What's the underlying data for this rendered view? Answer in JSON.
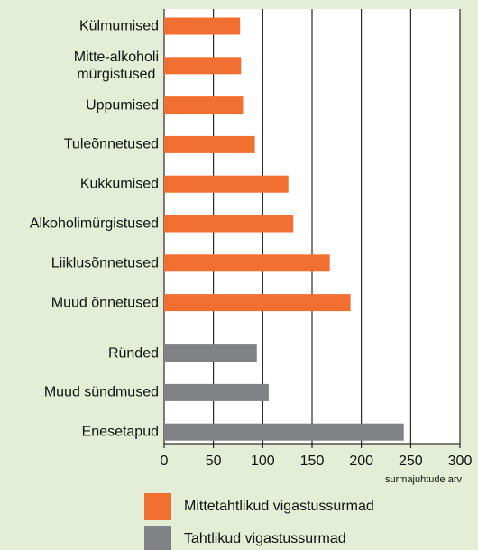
{
  "chart_data": {
    "type": "bar",
    "orientation": "horizontal",
    "categories": [
      "Külmumised",
      "Mitte-alkoholi\nmürgistused",
      "Uppumised",
      "Tuleõnnetused",
      "Kukkumised",
      "Alkoholimürgistused",
      "Liiklusõnnetused",
      "Muud õnnetused",
      "Ründed",
      "Muud sündmused",
      "Enesetapud"
    ],
    "series": [
      {
        "name": "Mittetahtlikud vigastussurmad",
        "color": "#f26f32",
        "values": [
          77,
          78,
          80,
          92,
          126,
          131,
          168,
          189,
          null,
          null,
          null
        ]
      },
      {
        "name": "Tahtlikud vigastussurmad",
        "color": "#808285",
        "values": [
          null,
          null,
          null,
          null,
          null,
          null,
          null,
          null,
          94,
          106,
          243
        ]
      }
    ],
    "xlabel": "surmajuhtude arv",
    "xlim": [
      0,
      300
    ],
    "xticks": [
      0,
      50,
      100,
      150,
      200,
      250,
      300
    ],
    "grid": true
  }
}
